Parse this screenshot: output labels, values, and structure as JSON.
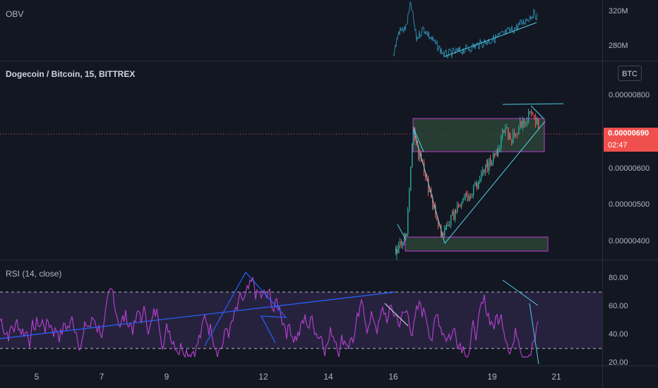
{
  "obv": {
    "label": "OBV",
    "axis": [
      "320M",
      "280M"
    ]
  },
  "main": {
    "title": "Dogecoin / Bitcoin, 15, BITTREX",
    "currency": "BTC",
    "axis": [
      "0.00000800",
      "0.00000600",
      "0.00000500",
      "0.00000400"
    ],
    "last_price": "0.00000690",
    "countdown": "02:47"
  },
  "rsi": {
    "label": "RSI (14, close)",
    "axis": [
      "80.00",
      "60.00",
      "40.00",
      "20.00"
    ]
  },
  "time_axis": [
    "5",
    "7",
    "9",
    "12",
    "14",
    "16",
    "19",
    "21"
  ],
  "colors": {
    "background": "#131722",
    "candle_up": "#26a69a",
    "candle_down": "#ef5350",
    "obv_line": "#2b86a8",
    "rsi_line": "#b03ec8",
    "rsi_band": "#7e57c2",
    "trendline_blue": "#2962ff",
    "box_fill": "#2f4a3a",
    "box_border": "#c23ad1",
    "price_badge": "#f0504d"
  }
}
